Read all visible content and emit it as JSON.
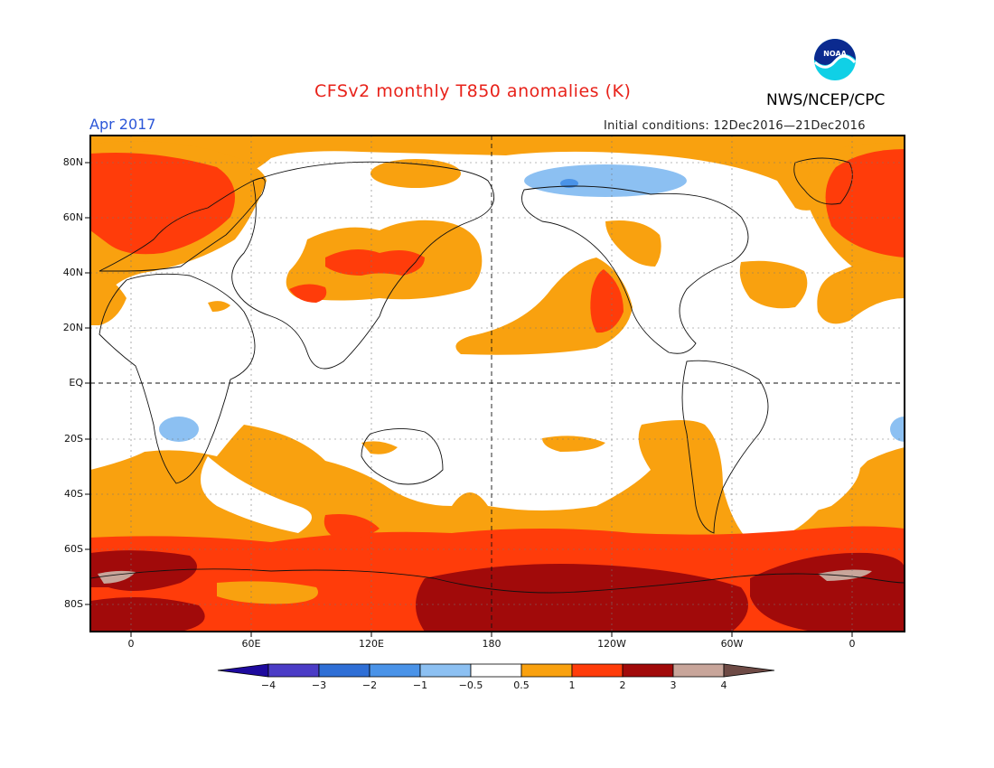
{
  "title": "CFSv2 monthly T850 anomalies (K)",
  "month_label": "Apr 2017",
  "initial_conditions": "Initial conditions: 12Dec2016—21Dec2016",
  "agency": "NWS/NCEP/CPC",
  "logo": {
    "text": "NOAA",
    "icon": "noaa-logo-icon"
  },
  "lat_labels": [
    "80N",
    "60N",
    "40N",
    "20N",
    "EQ",
    "20S",
    "40S",
    "60S",
    "80S"
  ],
  "lon_labels": [
    "0",
    "60E",
    "120E",
    "180",
    "120W",
    "60W",
    "0"
  ],
  "colorbar": {
    "labels": [
      "−4",
      "−3",
      "−2",
      "−1",
      "−0.5",
      "0.5",
      "1",
      "2",
      "3",
      "4"
    ],
    "colors": [
      "#1e0a9e",
      "#4b3cc6",
      "#2f6fd6",
      "#4a93e8",
      "#8cc0f2",
      "#ffffff",
      "#f9a10f",
      "#ff3c0a",
      "#a10a0a",
      "#c8a59a",
      "#6e4a45"
    ]
  },
  "palette": {
    "warm1": "#f9a10f",
    "warm2": "#ff3c0a",
    "warm3": "#a10a0a",
    "warm4": "#c8a59a",
    "cool1": "#8cc0f2",
    "cool2": "#4a93e8"
  }
}
